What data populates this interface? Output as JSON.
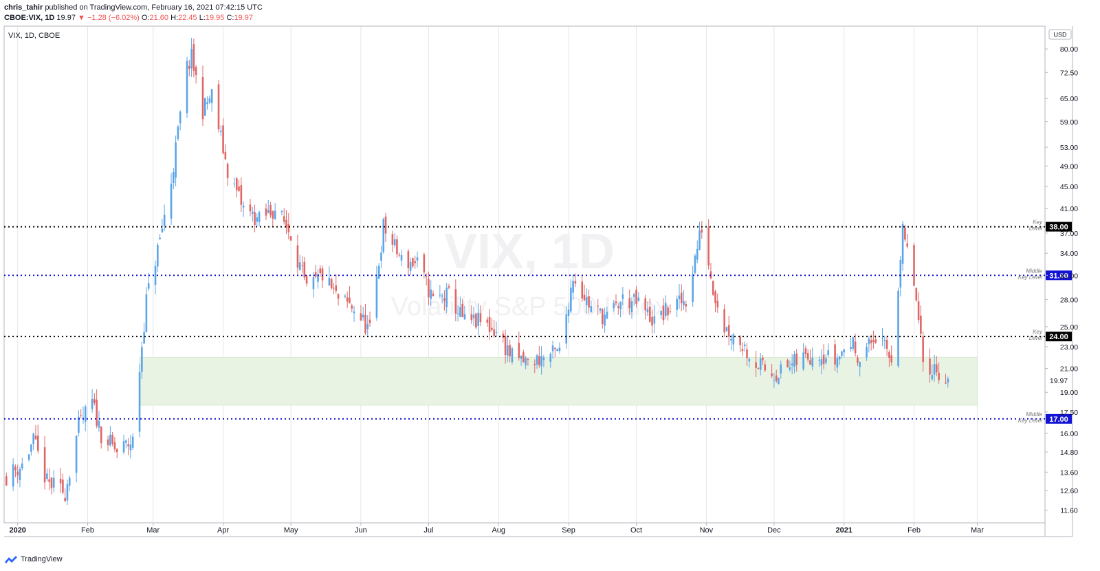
{
  "header": {
    "author": "chris_tahir",
    "published_text": "published on TradingView.com, February 16, 2021 07:42:15 UTC",
    "symbol_line": "CBOE:VIX, 1D",
    "last": "19.97",
    "change_arrow": "▼",
    "change": "−1.28 (−6.02%)",
    "o_label": "O:",
    "o_value": "21.60",
    "h_label": "H:",
    "h_value": "22.45",
    "l_label": "L:",
    "l_value": "19.95",
    "c_label": "C:",
    "c_value": "19.97"
  },
  "footer": {
    "brand": "TradingView",
    "logo_icon": "tradingview-logo-icon"
  },
  "chart_data": {
    "type": "candlestick",
    "symbol_label": "VIX, 1D, CBOE",
    "watermark_symbol": "VIX, 1D",
    "watermark_name": "Volatility S&P 500 Index",
    "currency": "USD",
    "y_scale": "log",
    "ylim": [
      11.0,
      88.0
    ],
    "y_ticks": [
      "80.00",
      "72.50",
      "65.00",
      "59.00",
      "53.00",
      "49.00",
      "45.00",
      "41.00",
      "37.00",
      "34.00",
      "31.00",
      "28.00",
      "25.00",
      "23.00",
      "21.00",
      "19.00",
      "17.50",
      "16.00",
      "14.80",
      "13.60",
      "12.60",
      "11.60"
    ],
    "x_range": [
      "2019-12-26",
      "2021-03-31"
    ],
    "x_ticks": [
      {
        "label": "2020",
        "date": "2020-01-01",
        "bold": true
      },
      {
        "label": "Feb",
        "date": "2020-02-01"
      },
      {
        "label": "Mar",
        "date": "2020-03-01"
      },
      {
        "label": "Apr",
        "date": "2020-04-01"
      },
      {
        "label": "May",
        "date": "2020-05-01"
      },
      {
        "label": "Jun",
        "date": "2020-06-01"
      },
      {
        "label": "Jul",
        "date": "2020-07-01"
      },
      {
        "label": "Aug",
        "date": "2020-08-01"
      },
      {
        "label": "Sep",
        "date": "2020-09-01"
      },
      {
        "label": "Oct",
        "date": "2020-10-01"
      },
      {
        "label": "Nov",
        "date": "2020-11-01"
      },
      {
        "label": "Dec",
        "date": "2020-12-01"
      },
      {
        "label": "2021",
        "date": "2021-01-01",
        "bold": true
      },
      {
        "label": "Feb",
        "date": "2021-02-01"
      },
      {
        "label": "Mar",
        "date": "2021-03-01"
      }
    ],
    "last_price": {
      "value": 19.97,
      "label": "19.97"
    },
    "colors": {
      "up": "#5aa5e8",
      "down": "#e06666",
      "key": "#000000",
      "middle": "#1313d6",
      "zone": "#e8f3e3"
    },
    "levels": [
      {
        "value": 38.0,
        "label": "38.00",
        "note": "Key Level",
        "kind": "key"
      },
      {
        "value": 31.0,
        "label": "31.00",
        "note": "Middle Key Level",
        "kind": "middle"
      },
      {
        "value": 24.0,
        "label": "24.00",
        "note": "Key Level",
        "kind": "key"
      },
      {
        "value": 17.0,
        "label": "17.00",
        "note": "Middle Key Level",
        "kind": "middle"
      }
    ],
    "zone": {
      "from_date": "2020-02-24",
      "to_date": "2021-03-01",
      "low": 18.0,
      "high": 22.0
    },
    "anchors": [
      [
        "2019-12-27",
        13.4
      ],
      [
        "2020-01-03",
        14.0
      ],
      [
        "2020-01-08",
        15.5
      ],
      [
        "2020-01-14",
        13.0
      ],
      [
        "2020-01-22",
        12.5
      ],
      [
        "2020-01-28",
        16.5
      ],
      [
        "2020-02-03",
        18.2
      ],
      [
        "2020-02-07",
        16.0
      ],
      [
        "2020-02-14",
        14.8
      ],
      [
        "2020-02-21",
        15.5
      ],
      [
        "2020-02-24",
        21.0
      ],
      [
        "2020-02-27",
        28.0
      ],
      [
        "2020-03-04",
        36.0
      ],
      [
        "2020-03-09",
        46.0
      ],
      [
        "2020-03-16,",
        74.0
      ],
      [
        "2020-03-18",
        77.0
      ],
      [
        "2020-03-23",
        62.0
      ],
      [
        "2020-03-27",
        66.0
      ],
      [
        "2020-04-03",
        48.0
      ],
      [
        "2020-04-10",
        41.0
      ],
      [
        "2020-04-17",
        39.0
      ],
      [
        "2020-04-24",
        41.0
      ],
      [
        "2020-05-01",
        37.0
      ],
      [
        "2020-05-08",
        29.0
      ],
      [
        "2020-05-15",
        31.0
      ],
      [
        "2020-05-22",
        28.0
      ],
      [
        "2020-05-29",
        27.0
      ],
      [
        "2020-06-05",
        24.5
      ],
      [
        "2020-06-11",
        38.0
      ],
      [
        "2020-06-19",
        33.0
      ],
      [
        "2020-06-26",
        32.5
      ],
      [
        "2020-07-03",
        28.0
      ],
      [
        "2020-07-10",
        28.5
      ],
      [
        "2020-07-17",
        25.5
      ],
      [
        "2020-07-24",
        25.5
      ],
      [
        "2020-07-31",
        24.5
      ],
      [
        "2020-08-07",
        22.0
      ],
      [
        "2020-08-14",
        21.5
      ],
      [
        "2020-08-21",
        22.0
      ],
      [
        "2020-08-28",
        22.5
      ],
      [
        "2020-09-03",
        31.0
      ],
      [
        "2020-09-11",
        27.0
      ],
      [
        "2020-09-18",
        26.0
      ],
      [
        "2020-09-25",
        28.0
      ],
      [
        "2020-10-02",
        27.5
      ],
      [
        "2020-10-09",
        25.5
      ],
      [
        "2020-10-16",
        27.0
      ],
      [
        "2020-10-23",
        28.0
      ],
      [
        "2020-10-30",
        38.0
      ],
      [
        "2020-11-04",
        29.5
      ],
      [
        "2020-11-09",
        25.0
      ],
      [
        "2020-11-16",
        23.5
      ],
      [
        "2020-11-23",
        21.5
      ],
      [
        "2020-11-30",
        20.5
      ],
      [
        "2020-12-07",
        21.0
      ],
      [
        "2020-12-14",
        22.0
      ],
      [
        "2020-12-21",
        22.5
      ],
      [
        "2020-12-28",
        21.7
      ],
      [
        "2021-01-04",
        23.5
      ],
      [
        "2021-01-08",
        22.0
      ],
      [
        "2021-01-15",
        24.0
      ],
      [
        "2021-01-22",
        21.9
      ],
      [
        "2021-01-27",
        37.0
      ],
      [
        "2021-02-01",
        30.0
      ],
      [
        "2021-02-05",
        21.5
      ],
      [
        "2021-02-10",
        21.0
      ],
      [
        "2021-02-16",
        19.97
      ]
    ]
  }
}
